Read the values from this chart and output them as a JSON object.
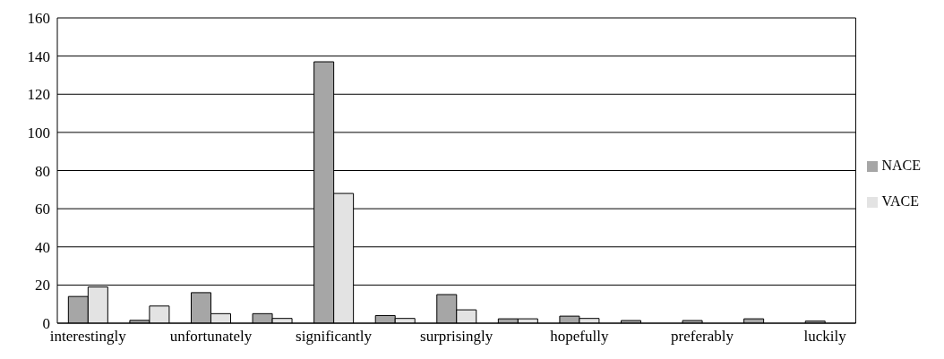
{
  "chart_data": {
    "type": "bar",
    "categories": [
      "interestingly",
      null,
      "unfortunately",
      null,
      "significantly",
      null,
      "surprisingly",
      null,
      "hopefully",
      null,
      "preferably",
      null,
      "luckily"
    ],
    "series": [
      {
        "name": "NACE",
        "color": "#a6a6a6",
        "values": [
          14,
          1.5,
          16,
          5,
          137,
          4,
          15,
          2.3,
          3.7,
          1.4,
          1.4,
          2.3,
          1.1
        ]
      },
      {
        "name": "VACE",
        "color": "#e3e3e3",
        "values": [
          19,
          9,
          5,
          2.5,
          68,
          2.5,
          7,
          2.3,
          2.5,
          0,
          0,
          0,
          0
        ]
      }
    ],
    "ylim": [
      0,
      160
    ],
    "yticks": [
      0,
      20,
      40,
      60,
      80,
      100,
      120,
      140,
      160
    ],
    "grid": "y",
    "legend": "right"
  }
}
